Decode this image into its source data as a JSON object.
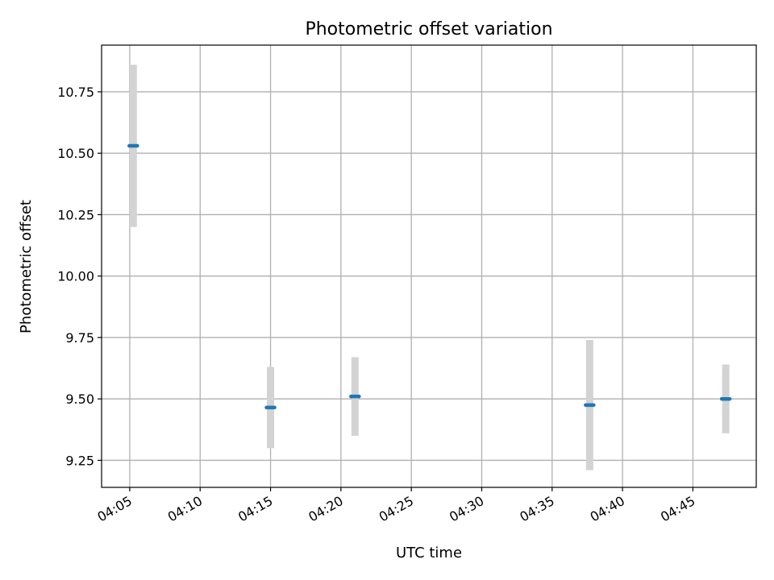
{
  "chart_data": {
    "type": "scatter",
    "title": "Photometric offset variation",
    "xlabel": "UTC time",
    "ylabel": "Photometric offset",
    "grid": true,
    "xlim": [
      "04:03:00",
      "04:49:30"
    ],
    "ylim": [
      9.14,
      10.94
    ],
    "x_ticks": [
      "04:05",
      "04:10",
      "04:15",
      "04:20",
      "04:25",
      "04:30",
      "04:35",
      "04:40",
      "04:45"
    ],
    "y_ticks": [
      "9.25",
      "9.50",
      "9.75",
      "10.00",
      "10.25",
      "10.50",
      "10.75"
    ],
    "series": [
      {
        "marker": "dash",
        "points": [
          {
            "x": "04:05:15",
            "y": 10.53,
            "err_low": 10.2,
            "err_high": 10.86
          },
          {
            "x": "04:15:00",
            "y": 9.465,
            "err_low": 9.3,
            "err_high": 9.63
          },
          {
            "x": "04:21:00",
            "y": 9.51,
            "err_low": 9.35,
            "err_high": 9.67
          },
          {
            "x": "04:37:40",
            "y": 9.475,
            "err_low": 9.21,
            "err_high": 9.74
          },
          {
            "x": "04:47:20",
            "y": 9.5,
            "err_low": 9.36,
            "err_high": 9.64
          }
        ]
      }
    ],
    "colors": {
      "marker": "#1f77b4",
      "errorbar": "#d3d3d3",
      "grid": "#b0b0b0",
      "axes": "#000000"
    }
  }
}
